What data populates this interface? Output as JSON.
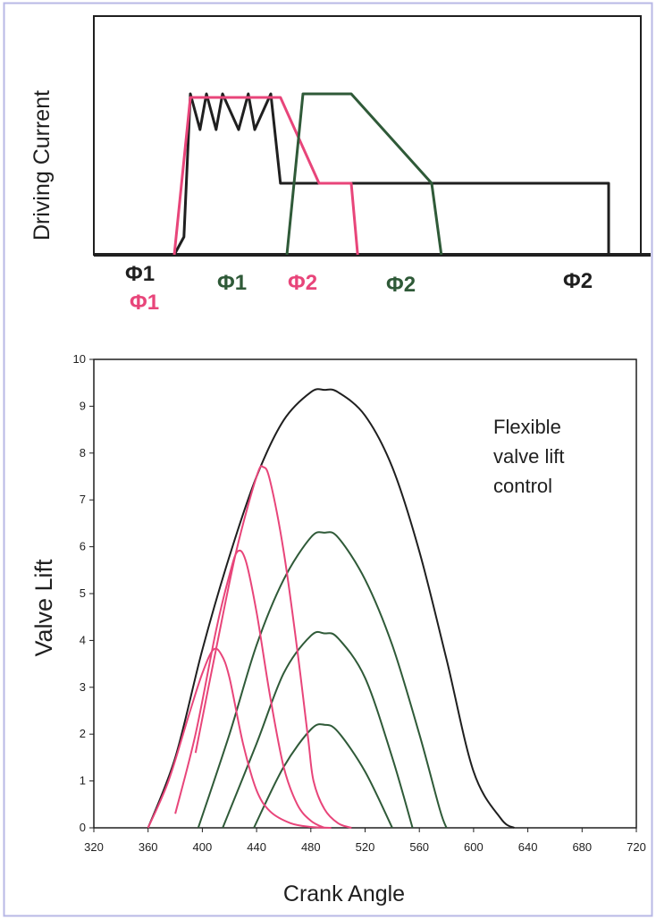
{
  "colors": {
    "black": "#1f1f1f",
    "red": "#e8457a",
    "green": "#2f5a38",
    "frame": "#b8b8e6"
  },
  "chart_data": [
    {
      "type": "line",
      "ylabel": "Driving Current",
      "phase_labels": [
        {
          "text": "Φ1",
          "color": "black"
        },
        {
          "text": "Φ1",
          "color": "red"
        },
        {
          "text": "Φ1",
          "color": "green"
        },
        {
          "text": "Φ2",
          "color": "red"
        },
        {
          "text": "Φ2",
          "color": "green"
        },
        {
          "text": "Φ2",
          "color": "black"
        }
      ],
      "series": [
        {
          "color": "black",
          "x": [
            155,
            158,
            160,
            163,
            165,
            168,
            170,
            175,
            178,
            180,
            185,
            188,
            200,
            270,
            280,
            285,
            288,
            290,
            290
          ],
          "y": [
            0,
            1,
            9,
            7,
            9,
            7,
            9,
            7,
            9,
            7,
            9,
            4,
            4,
            4,
            4,
            4,
            4,
            4,
            0
          ]
        },
        {
          "color": "red",
          "x": [
            155,
            160,
            188,
            200,
            210,
            212
          ],
          "y": [
            0,
            8.8,
            8.8,
            4,
            4,
            0
          ]
        },
        {
          "color": "green",
          "x": [
            190,
            195,
            210,
            235,
            238
          ],
          "y": [
            0,
            9,
            9,
            4,
            0
          ]
        }
      ]
    },
    {
      "type": "line",
      "xlabel": "Crank Angle",
      "ylabel": "Valve Lift",
      "annotation": "Flexible valve lift control",
      "x_ticks": [
        320,
        360,
        400,
        440,
        480,
        520,
        560,
        600,
        640,
        680,
        720
      ],
      "y_ticks": [
        0,
        1,
        2,
        3,
        4,
        5,
        6,
        7,
        8,
        9,
        10
      ],
      "xlim": [
        320,
        720
      ],
      "ylim": [
        0,
        10
      ],
      "grid": false,
      "series": [
        {
          "color": "black",
          "x": [
            360,
            380,
            400,
            420,
            440,
            460,
            480,
            490,
            500,
            520,
            540,
            560,
            580,
            600,
            620,
            630
          ],
          "y": [
            0,
            1.5,
            3.8,
            5.8,
            7.5,
            8.7,
            9.3,
            9.35,
            9.3,
            8.8,
            7.7,
            5.9,
            3.6,
            1.2,
            0.2,
            0
          ]
        },
        {
          "color": "green",
          "x": [
            397,
            420,
            440,
            460,
            480,
            490,
            500,
            520,
            540,
            560,
            575,
            580
          ],
          "y": [
            0,
            2.0,
            3.9,
            5.3,
            6.2,
            6.3,
            6.2,
            5.3,
            3.9,
            2.0,
            0.4,
            0
          ]
        },
        {
          "color": "green",
          "x": [
            415,
            440,
            460,
            480,
            490,
            500,
            520,
            540,
            555
          ],
          "y": [
            0,
            1.8,
            3.3,
            4.1,
            4.15,
            4.05,
            3.2,
            1.5,
            0
          ]
        },
        {
          "color": "green",
          "x": [
            438,
            460,
            480,
            490,
            500,
            520,
            540
          ],
          "y": [
            0,
            1.3,
            2.1,
            2.2,
            2.05,
            1.2,
            0
          ]
        },
        {
          "color": "red",
          "x": [
            360,
            375,
            390,
            400,
            408,
            414,
            420,
            430,
            440,
            450,
            465,
            480,
            495
          ],
          "y": [
            0,
            1.0,
            2.4,
            3.3,
            3.8,
            3.7,
            3.2,
            1.8,
            0.8,
            0.35,
            0.1,
            0.02,
            0
          ]
        },
        {
          "color": "red",
          "x": [
            380,
            395,
            410,
            420,
            426,
            432,
            440,
            450,
            460,
            470,
            480,
            490
          ],
          "y": [
            0.3,
            2.0,
            4.2,
            5.4,
            5.9,
            5.7,
            4.6,
            2.8,
            1.3,
            0.5,
            0.15,
            0
          ]
        },
        {
          "color": "red",
          "x": [
            395,
            410,
            425,
            440,
            445,
            450,
            460,
            470,
            478,
            482,
            490,
            500,
            510
          ],
          "y": [
            1.6,
            3.8,
            5.9,
            7.5,
            7.7,
            7.4,
            5.9,
            3.8,
            1.9,
            1.0,
            0.4,
            0.1,
            0
          ]
        }
      ]
    }
  ]
}
